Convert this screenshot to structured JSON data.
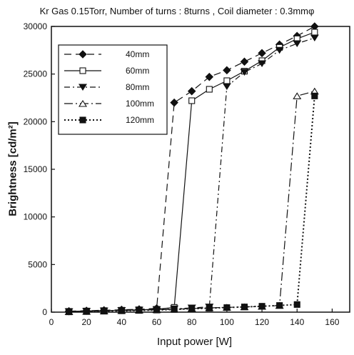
{
  "chart_data": {
    "type": "line",
    "title": "Kr Gas 0.15Torr, Number of turns : 8turns , Coil diameter : 0.3mmφ",
    "xlabel": "Input power [W]",
    "ylabel": "Brightness [cd/m²]",
    "xlim": [
      0,
      170
    ],
    "ylim": [
      0,
      30000
    ],
    "xticks": [
      0,
      20,
      40,
      60,
      80,
      100,
      120,
      140,
      160
    ],
    "yticks": [
      0,
      5000,
      10000,
      15000,
      20000,
      25000,
      30000
    ],
    "grid": false,
    "legend_position": "top-left",
    "series": [
      {
        "name": "40mm",
        "marker": "diamond-filled",
        "dash": "10,6",
        "x": [
          10,
          20,
          30,
          40,
          50,
          60,
          70,
          80,
          90,
          100,
          110,
          120,
          130,
          140,
          150
        ],
        "y": [
          100,
          150,
          200,
          250,
          300,
          400,
          22000,
          23200,
          24700,
          25400,
          26300,
          27200,
          28100,
          29000,
          30000
        ]
      },
      {
        "name": "60mm",
        "marker": "square-open",
        "dash": "",
        "x": [
          10,
          20,
          30,
          40,
          50,
          60,
          70,
          80,
          90,
          100,
          110,
          120,
          130,
          140,
          150
        ],
        "y": [
          80,
          120,
          160,
          200,
          250,
          300,
          500,
          22200,
          23400,
          24300,
          25300,
          26400,
          27800,
          28700,
          29400
        ]
      },
      {
        "name": "80mm",
        "marker": "triangle-down-filled",
        "dash": "8,4,2,4",
        "x": [
          10,
          20,
          30,
          40,
          50,
          60,
          70,
          80,
          90,
          100,
          110,
          120,
          130,
          140,
          150
        ],
        "y": [
          60,
          100,
          140,
          180,
          220,
          280,
          350,
          450,
          550,
          23700,
          25200,
          26100,
          27500,
          28200,
          28800
        ]
      },
      {
        "name": "100mm",
        "marker": "triangle-up-open",
        "dash": "12,4,2,4",
        "x": [
          10,
          20,
          30,
          40,
          50,
          60,
          70,
          80,
          90,
          100,
          110,
          120,
          130,
          140,
          150
        ],
        "y": [
          40,
          80,
          120,
          160,
          200,
          250,
          300,
          380,
          450,
          500,
          550,
          600,
          700,
          22700,
          23200
        ]
      },
      {
        "name": "120mm",
        "marker": "square-filled",
        "dash": "2,3",
        "x": [
          10,
          20,
          30,
          40,
          50,
          60,
          70,
          80,
          90,
          100,
          110,
          120,
          130,
          140,
          150
        ],
        "y": [
          30,
          60,
          100,
          140,
          180,
          220,
          280,
          350,
          420,
          480,
          550,
          620,
          700,
          800,
          22700
        ]
      }
    ]
  }
}
